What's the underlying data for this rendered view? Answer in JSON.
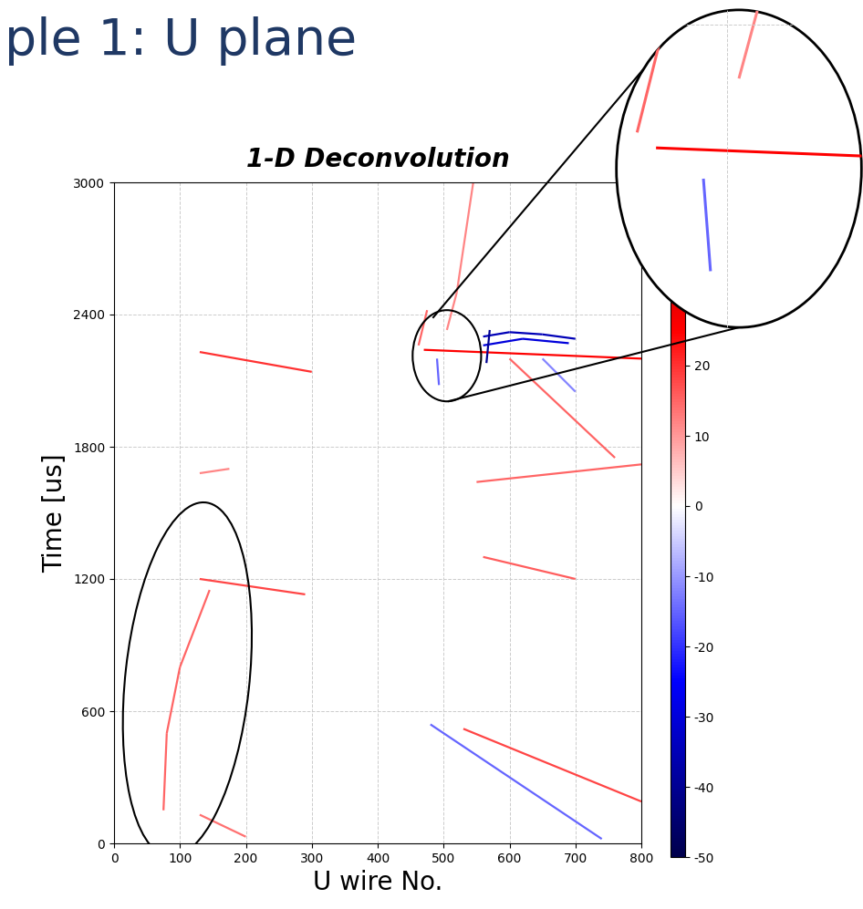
{
  "header": "ple 1: U plane",
  "chart_data": {
    "type": "track_image",
    "title": "1-D Deconvolution",
    "x_label": "U wire No.",
    "y_label": "Time [us]",
    "xlim": [
      0,
      800
    ],
    "ylim": [
      0,
      3000
    ],
    "xticks": [
      0,
      100,
      200,
      300,
      400,
      500,
      600,
      700,
      800
    ],
    "yticks": [
      0,
      600,
      1200,
      1800,
      2400,
      3000
    ],
    "grid": true,
    "tracks": [
      {
        "x": [
          130,
          300
        ],
        "y": [
          2230,
          2140
        ],
        "value": 20
      },
      {
        "x": [
          130,
          175
        ],
        "y": [
          1680,
          1700
        ],
        "value": 12
      },
      {
        "x": [
          130,
          290
        ],
        "y": [
          1200,
          1130
        ],
        "value": 18
      },
      {
        "x": [
          75,
          80,
          100,
          145
        ],
        "y": [
          150,
          500,
          800,
          1150
        ],
        "value": 15
      },
      {
        "x": [
          130,
          200
        ],
        "y": [
          130,
          30
        ],
        "value": 14
      },
      {
        "x": [
          480,
          740
        ],
        "y": [
          540,
          20
        ],
        "value": -15
      },
      {
        "x": [
          530,
          800
        ],
        "y": [
          520,
          190
        ],
        "value": 18
      },
      {
        "x": [
          550,
          800
        ],
        "y": [
          1640,
          1720
        ],
        "value": 15
      },
      {
        "x": [
          560,
          700
        ],
        "y": [
          1300,
          1200
        ],
        "value": 16
      },
      {
        "x": [
          470,
          800
        ],
        "y": [
          2240,
          2200
        ],
        "value": 25
      },
      {
        "x": [
          560,
          600,
          650,
          700
        ],
        "y": [
          2300,
          2320,
          2310,
          2290
        ],
        "value": -35
      },
      {
        "x": [
          560,
          620,
          690
        ],
        "y": [
          2260,
          2290,
          2270
        ],
        "value": -30
      },
      {
        "x": [
          565,
          570
        ],
        "y": [
          2180,
          2330
        ],
        "value": -40
      },
      {
        "x": [
          600,
          760
        ],
        "y": [
          2200,
          1750
        ],
        "value": 15
      },
      {
        "x": [
          650,
          700
        ],
        "y": [
          2200,
          2050
        ],
        "value": -12
      },
      {
        "x": [
          475,
          462
        ],
        "y": [
          2420,
          2260
        ],
        "value": 15
      },
      {
        "x": [
          505,
          520,
          545
        ],
        "y": [
          2330,
          2500,
          3000
        ],
        "value": 12
      },
      {
        "x": [
          490,
          493
        ],
        "y": [
          2200,
          2080
        ],
        "value": -15
      }
    ],
    "colorbar": {
      "range": [
        -50,
        50
      ],
      "ticks": [
        -50,
        -40,
        -30,
        -20,
        -10,
        0,
        10,
        20
      ]
    },
    "inset": {
      "xlim": [
        453,
        557
      ],
      "ylim": [
        2006,
        2420
      ]
    }
  }
}
